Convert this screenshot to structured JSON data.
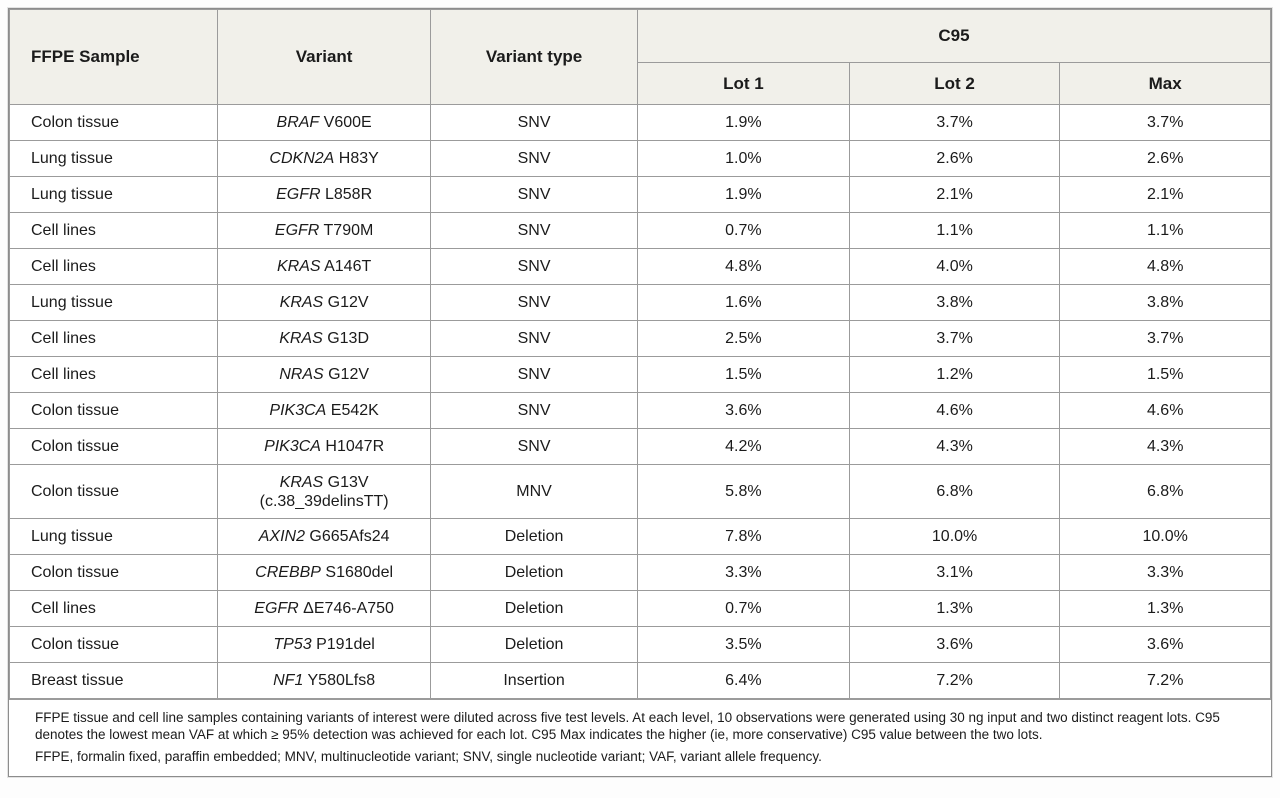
{
  "colors": {
    "header_bg": "#f1f0ea",
    "border_inner": "#9b9b9b",
    "border_outer": "#8c8c8c",
    "text": "#1b1b1b",
    "row_bg": "#ffffff"
  },
  "table": {
    "header": {
      "col_sample": "FFPE Sample",
      "col_variant": "Variant",
      "col_type": "Variant type",
      "c95_group": "C95",
      "lot1": "Lot 1",
      "lot2": "Lot 2",
      "max": "Max"
    },
    "footnotes": [
      "FFPE tissue and cell line samples containing variants of interest were diluted across five test levels. At each level, 10 observations were generated using 30 ng input and two distinct reagent lots. C95 denotes the lowest mean VAF at which ≥ 95% detection was achieved for each lot. C95 Max indicates the higher (ie, more conservative) C95 value between the two lots.",
      "FFPE, formalin fixed, paraffin embedded; MNV, multinucleotide variant; SNV, single nucleotide variant; VAF, variant allele frequency."
    ]
  },
  "chart_data": {
    "type": "table",
    "title": "",
    "columns": [
      "FFPE Sample",
      "Variant",
      "Variant type",
      "C95 Lot 1",
      "C95 Lot 2",
      "C95 Max"
    ],
    "rows": [
      {
        "sample": "Colon tissue",
        "gene": "BRAF",
        "mutation": "V600E",
        "note": "",
        "type": "SNV",
        "lot1": "1.9%",
        "lot2": "3.7%",
        "max": "3.7%"
      },
      {
        "sample": "Lung tissue",
        "gene": "CDKN2A",
        "mutation": "H83Y",
        "note": "",
        "type": "SNV",
        "lot1": "1.0%",
        "lot2": "2.6%",
        "max": "2.6%"
      },
      {
        "sample": "Lung tissue",
        "gene": "EGFR",
        "mutation": "L858R",
        "note": "",
        "type": "SNV",
        "lot1": "1.9%",
        "lot2": "2.1%",
        "max": "2.1%"
      },
      {
        "sample": "Cell lines",
        "gene": "EGFR",
        "mutation": "T790M",
        "note": "",
        "type": "SNV",
        "lot1": "0.7%",
        "lot2": "1.1%",
        "max": "1.1%"
      },
      {
        "sample": "Cell lines",
        "gene": "KRAS",
        "mutation": "A146T",
        "note": "",
        "type": "SNV",
        "lot1": "4.8%",
        "lot2": "4.0%",
        "max": "4.8%"
      },
      {
        "sample": "Lung tissue",
        "gene": "KRAS",
        "mutation": "G12V",
        "note": "",
        "type": "SNV",
        "lot1": "1.6%",
        "lot2": "3.8%",
        "max": "3.8%"
      },
      {
        "sample": "Cell lines",
        "gene": "KRAS",
        "mutation": "G13D",
        "note": "",
        "type": "SNV",
        "lot1": "2.5%",
        "lot2": "3.7%",
        "max": "3.7%"
      },
      {
        "sample": "Cell lines",
        "gene": "NRAS",
        "mutation": "G12V",
        "note": "",
        "type": "SNV",
        "lot1": "1.5%",
        "lot2": "1.2%",
        "max": "1.5%"
      },
      {
        "sample": "Colon tissue",
        "gene": "PIK3CA",
        "mutation": "E542K",
        "note": "",
        "type": "SNV",
        "lot1": "3.6%",
        "lot2": "4.6%",
        "max": "4.6%"
      },
      {
        "sample": "Colon tissue",
        "gene": "PIK3CA",
        "mutation": "H1047R",
        "note": "",
        "type": "SNV",
        "lot1": "4.2%",
        "lot2": "4.3%",
        "max": "4.3%"
      },
      {
        "sample": "Colon tissue",
        "gene": "KRAS",
        "mutation": "G13V",
        "note": "(c.38_39delinsTT)",
        "type": "MNV",
        "lot1": "5.8%",
        "lot2": "6.8%",
        "max": "6.8%"
      },
      {
        "sample": "Lung tissue",
        "gene": "AXIN2",
        "mutation": "G665Afs24",
        "note": "",
        "type": "Deletion",
        "lot1": "7.8%",
        "lot2": "10.0%",
        "max": "10.0%"
      },
      {
        "sample": "Colon tissue",
        "gene": "CREBBP",
        "mutation": "S1680del",
        "note": "",
        "type": "Deletion",
        "lot1": "3.3%",
        "lot2": "3.1%",
        "max": "3.3%"
      },
      {
        "sample": "Cell lines",
        "gene": "EGFR",
        "mutation": "ΔE746-A750",
        "note": "",
        "type": "Deletion",
        "lot1": "0.7%",
        "lot2": "1.3%",
        "max": "1.3%"
      },
      {
        "sample": "Colon tissue",
        "gene": "TP53",
        "mutation": "P191del",
        "note": "",
        "type": "Deletion",
        "lot1": "3.5%",
        "lot2": "3.6%",
        "max": "3.6%"
      },
      {
        "sample": "Breast tissue",
        "gene": "NF1",
        "mutation": "Y580Lfs8",
        "note": "",
        "type": "Insertion",
        "lot1": "6.4%",
        "lot2": "7.2%",
        "max": "7.2%"
      }
    ]
  }
}
